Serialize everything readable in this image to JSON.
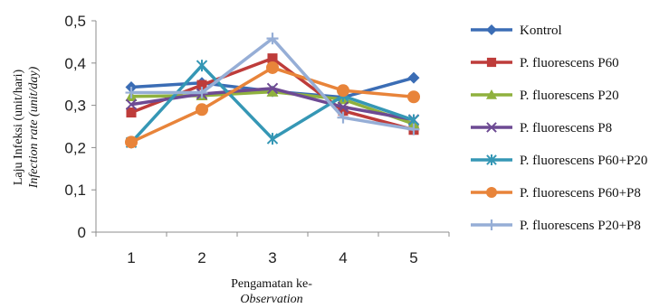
{
  "chart_data": {
    "type": "line",
    "x": [
      1,
      2,
      3,
      4,
      5
    ],
    "xlabel": "Pengamatan ke-",
    "xlabel_italic": "Observation",
    "ylabel": "Laju Infeksi (unit/hari)",
    "ylabel_italic": "Infection rate (unit/day)",
    "ylim": [
      0,
      0.5
    ],
    "yticks": [
      "0",
      "0,1",
      "0,2",
      "0,3",
      "0,4",
      "0,5"
    ],
    "xticks": [
      "1",
      "2",
      "3",
      "4",
      "5"
    ],
    "grid": false,
    "legend_position": "right",
    "series": [
      {
        "name": "Kontrol",
        "values": [
          0.343,
          0.353,
          0.333,
          0.319,
          0.365
        ],
        "color": "#3B6DB5",
        "marker": "diamond"
      },
      {
        "name": "P. fluorescens P60",
        "values": [
          0.283,
          0.348,
          0.411,
          0.287,
          0.242
        ],
        "color": "#BE3C3A",
        "marker": "square"
      },
      {
        "name": "P. fluorescens P20",
        "values": [
          0.321,
          0.323,
          0.332,
          0.314,
          0.256
        ],
        "color": "#8FB13E",
        "marker": "triangle"
      },
      {
        "name": "P. fluorescens P8",
        "values": [
          0.302,
          0.327,
          0.34,
          0.296,
          0.266
        ],
        "color": "#6D4A93",
        "marker": "x"
      },
      {
        "name": "P. fluorescens P60+P20",
        "values": [
          0.212,
          0.394,
          0.221,
          0.322,
          0.265
        ],
        "color": "#3597B5",
        "marker": "star"
      },
      {
        "name": "P. fluorescens P60+P8",
        "values": [
          0.213,
          0.29,
          0.389,
          0.335,
          0.32
        ],
        "color": "#E8843A",
        "marker": "circle"
      },
      {
        "name": "P. fluorescens P20+P8",
        "values": [
          0.33,
          0.33,
          0.458,
          0.271,
          0.243
        ],
        "color": "#96AED6",
        "marker": "plus"
      }
    ]
  }
}
